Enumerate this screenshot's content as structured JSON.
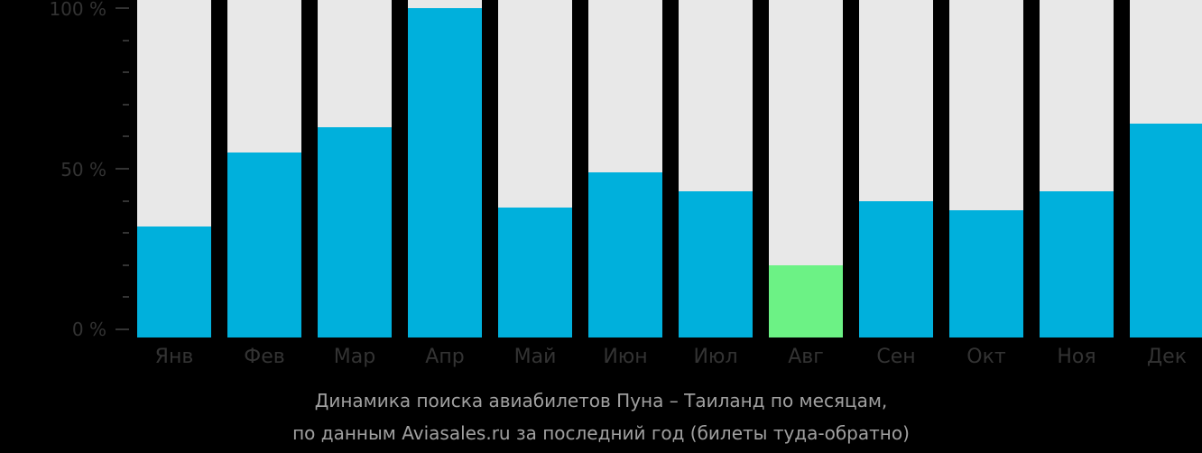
{
  "chart_data": {
    "type": "bar",
    "title": "Динамика поиска авиабилетов Пуна – Таиланд по месяцам, по данным Aviasales.ru за последний год (билеты туда-обратно)",
    "xlabel": "",
    "ylabel": "",
    "ylim": [
      0,
      100
    ],
    "yticks": [
      "0 %",
      "50 %",
      "100 %"
    ],
    "categories": [
      "Янв",
      "Фев",
      "Мар",
      "Апр",
      "Май",
      "Июн",
      "Июл",
      "Авг",
      "Сен",
      "Окт",
      "Ноя",
      "Дек"
    ],
    "values": [
      32,
      55,
      63,
      100,
      38,
      49,
      43,
      20,
      40,
      37,
      43,
      64
    ],
    "highlight_min": "Авг",
    "grid": false,
    "legend": null,
    "colors": {
      "bar": "#00b0dc",
      "min_bar": "#6cf285",
      "track": "#e8e8e8",
      "background": "#000000"
    }
  },
  "axis": {
    "y_labels": {
      "top": "100 %",
      "mid": "50 %",
      "bottom": "0 %"
    }
  },
  "caption": {
    "line1": "Динамика поиска авиабилетов Пуна – Таиланд по месяцам,",
    "line2": "по данным Aviasales.ru за последний год (билеты туда-обратно)"
  }
}
